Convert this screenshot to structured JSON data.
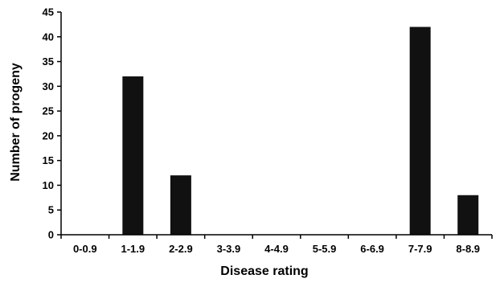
{
  "chart_data": {
    "type": "bar",
    "categories": [
      "0-0.9",
      "1-1.9",
      "2-2.9",
      "3-3.9",
      "4-4.9",
      "5-5.9",
      "6-6.9",
      "7-7.9",
      "8-8.9"
    ],
    "values": [
      0,
      32,
      12,
      0,
      0,
      0,
      0,
      42,
      8
    ],
    "xlabel": "Disease rating",
    "ylabel": "Number of progeny",
    "ylim": [
      0,
      45
    ],
    "yticks": [
      0,
      5,
      10,
      15,
      20,
      25,
      30,
      35,
      40,
      45
    ],
    "grid": false,
    "bar_color": "#111111"
  }
}
